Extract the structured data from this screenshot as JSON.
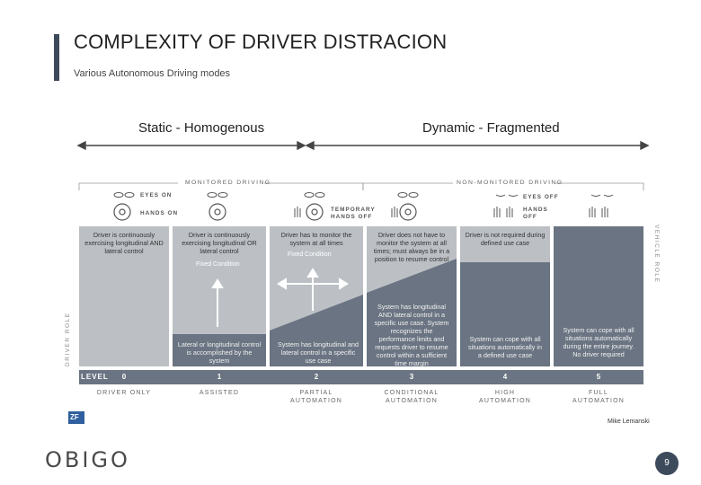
{
  "slide": {
    "title": "COMPLEXITY OF DRIVER DISTRACION",
    "subtitle": "Various Autonomous Driving modes",
    "static_label": "Static - Homogenous",
    "dynamic_label": "Dynamic - Fragmented",
    "page_number": "9",
    "logo_text": "OBIGO"
  },
  "figure": {
    "monitored_header": "MONITORED DRIVING",
    "non_monitored_header": "NON-MONITORED DRIVING",
    "eyes_on": "EYES ON",
    "hands_on": "HANDS ON",
    "temporary_hands_off_1": "TEMPORARY",
    "temporary_hands_off_2": "HANDS OFF",
    "eyes_off": "EYES OFF",
    "hands_off_1": "HANDS",
    "hands_off_2": "OFF",
    "driver_role": "DRIVER ROLE",
    "vehicle_role": "VEHICLE ROLE",
    "level_label": "LEVEL",
    "fixed_condition": "Fixed  Condition",
    "credit": "Mike Lemanski",
    "brand_mark": "ZF"
  },
  "levels": [
    {
      "number": "0",
      "name": "DRIVER ONLY",
      "driver_text": "Driver is continuously exercising longitudinal AND lateral control",
      "vehicle_text": ""
    },
    {
      "number": "1",
      "name": "ASSISTED",
      "driver_text": "Driver is continuously exercising longitudinal OR lateral control",
      "vehicle_text": "Lateral or longitudinal control is accomplished by the system"
    },
    {
      "number": "2",
      "name": "PARTIAL AUTOMATION",
      "driver_text": "Driver has to monitor the system at all times",
      "vehicle_text": "System has longitudinal and lateral control in a specific use case"
    },
    {
      "number": "3",
      "name": "CONDITIONAL AUTOMATION",
      "driver_text": "Driver does not have to monitor the system at all times; must always be in a position to resume control",
      "vehicle_text": "System has longitudinal AND lateral control in a specific use case. System recognizes the performance limits and requests driver to resume control within a sufficient time margin"
    },
    {
      "number": "4",
      "name": "HIGH AUTOMATION",
      "driver_text": "Driver is not required during defined use case",
      "vehicle_text": "System can cope with all situations automatically in a defined use case"
    },
    {
      "number": "5",
      "name": "FULL AUTOMATION",
      "driver_text": "",
      "vehicle_text": "System can cope with all situations automatically during the entire journey. No driver required"
    }
  ]
}
